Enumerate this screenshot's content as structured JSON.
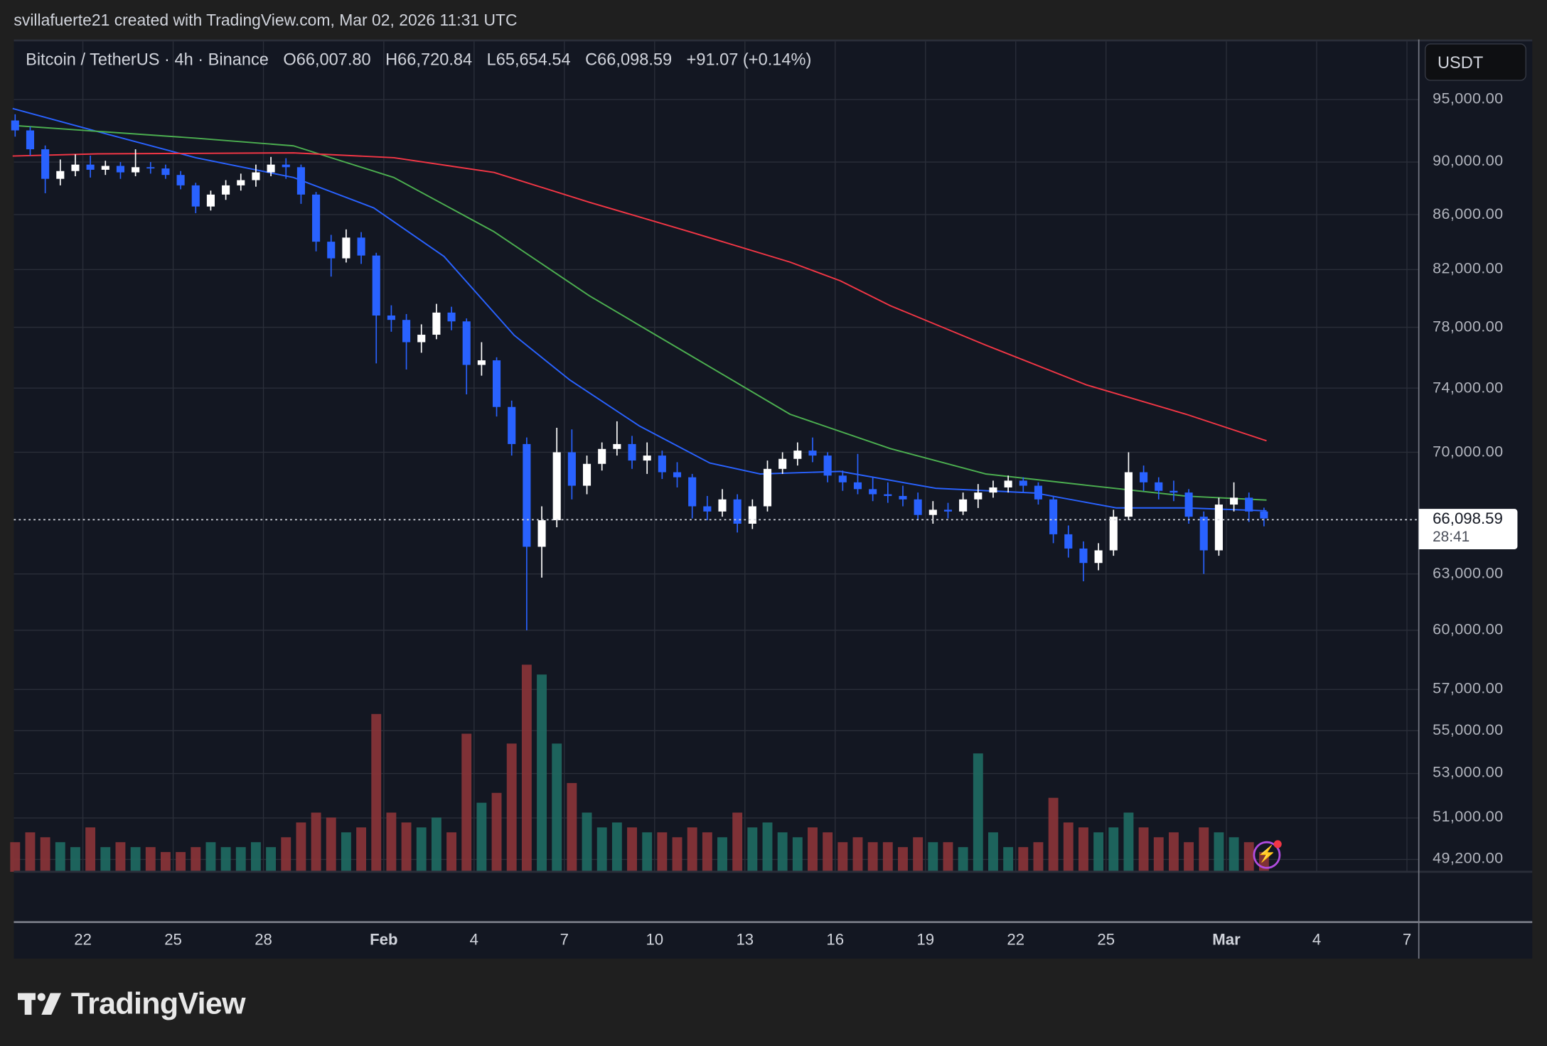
{
  "attribution": "svillafuerte21 created with TradingView.com, Mar 02, 2026 11:31 UTC",
  "legend": {
    "symbol": "Bitcoin / TetherUS · 4h · Binance",
    "open": "O66,007.80",
    "high": "H66,720.84",
    "low": "L65,654.54",
    "close": "C66,098.59",
    "change": "+91.07 (+0.14%)"
  },
  "currency_button": "USDT",
  "last_price": {
    "value": "66,098.59",
    "countdown": "28:41"
  },
  "logo_text": "TradingView",
  "colors": {
    "up_candle": "#ffffff",
    "down_candle": "#2962ff",
    "volume_up": "#1f6b63",
    "volume_down": "#8c3439",
    "ma_blue": "#2962ff",
    "ma_green": "#4caf50",
    "ma_red": "#f23645",
    "grid": "#2a2e39",
    "background": "#131722"
  },
  "chart_data": {
    "type": "candlestick",
    "title": "",
    "y_scale": "log",
    "ylim": [
      48800,
      96500
    ],
    "grid": true,
    "price_ticks": [
      "95,000.00",
      "90,000.00",
      "86,000.00",
      "82,000.00",
      "78,000.00",
      "74,000.00",
      "70,000.00",
      "63,000.00",
      "60,000.00",
      "57,000.00",
      "55,000.00",
      "53,000.00",
      "51,000.00",
      "49,200.00"
    ],
    "date_ticks": [
      {
        "label": "22",
        "date": "Jan 22 00:00"
      },
      {
        "label": "25",
        "date": "Jan 25 00:00"
      },
      {
        "label": "28",
        "date": "Jan 28 00:00"
      },
      {
        "label": "Feb",
        "date": "Feb 1 00:00",
        "bold": true
      },
      {
        "label": "4",
        "date": "Feb 4 00:00"
      },
      {
        "label": "7",
        "date": "Feb 7 00:00"
      },
      {
        "label": "10",
        "date": "Feb 10 00:00"
      },
      {
        "label": "13",
        "date": "Feb 13 00:00"
      },
      {
        "label": "16",
        "date": "Feb 16 00:00"
      },
      {
        "label": "19",
        "date": "Feb 19 00:00"
      },
      {
        "label": "22",
        "date": "Feb 22 00:00"
      },
      {
        "label": "25",
        "date": "Feb 25 00:00"
      },
      {
        "label": "Mar",
        "date": "Mar 1 00:00",
        "bold": true
      },
      {
        "label": "4",
        "date": "Mar 4 00:00"
      },
      {
        "label": "7",
        "date": "Mar 7 00:00"
      }
    ],
    "candle_columns": [
      "time",
      "open",
      "high",
      "low",
      "close",
      "volume"
    ],
    "candles": [
      [
        "Jan 19 12:00",
        93300,
        93800,
        92000,
        92500,
        6
      ],
      [
        "Jan 20 00:00",
        92500,
        92800,
        90500,
        91000,
        8
      ],
      [
        "Jan 20 12:00",
        91000,
        91300,
        87600,
        88700,
        7
      ],
      [
        "Jan 21 00:00",
        88700,
        90200,
        88200,
        89300,
        6
      ],
      [
        "Jan 21 12:00",
        89300,
        90600,
        88900,
        89800,
        5
      ],
      [
        "Jan 22 00:00",
        89800,
        90500,
        88800,
        89400,
        9
      ],
      [
        "Jan 22 12:00",
        89400,
        90100,
        89000,
        89700,
        5
      ],
      [
        "Jan 23 00:00",
        89700,
        90000,
        88700,
        89200,
        6
      ],
      [
        "Jan 23 12:00",
        89200,
        91000,
        88900,
        89600,
        5
      ],
      [
        "Jan 24 00:00",
        89600,
        90000,
        89100,
        89500,
        5
      ],
      [
        "Jan 24 12:00",
        89500,
        89800,
        88700,
        89000,
        4
      ],
      [
        "Jan 25 00:00",
        89000,
        89300,
        87900,
        88200,
        4
      ],
      [
        "Jan 25 12:00",
        88200,
        88400,
        86100,
        86600,
        5
      ],
      [
        "Jan 26 00:00",
        86600,
        87800,
        86300,
        87500,
        6
      ],
      [
        "Jan 26 12:00",
        87500,
        88600,
        87100,
        88200,
        5
      ],
      [
        "Jan 27 00:00",
        88200,
        89100,
        87800,
        88600,
        5
      ],
      [
        "Jan 27 12:00",
        88600,
        89800,
        88100,
        89200,
        6
      ],
      [
        "Jan 28 00:00",
        89200,
        90400,
        88900,
        89800,
        5
      ],
      [
        "Jan 28 12:00",
        89800,
        90300,
        88700,
        89600,
        7
      ],
      [
        "Jan 29 00:00",
        89600,
        89800,
        86800,
        87500,
        10
      ],
      [
        "Jan 29 12:00",
        87500,
        87700,
        83300,
        84000,
        12
      ],
      [
        "Jan 30 00:00",
        84000,
        84500,
        81500,
        82800,
        11
      ],
      [
        "Jan 30 12:00",
        82800,
        84900,
        82500,
        84300,
        8
      ],
      [
        "Jan 31 00:00",
        84300,
        84700,
        82400,
        83000,
        9
      ],
      [
        "Jan 31 12:00",
        83000,
        83200,
        75600,
        78800,
        32
      ],
      [
        "Feb 1 00:00",
        78800,
        79500,
        77700,
        78500,
        12
      ],
      [
        "Feb 1 12:00",
        78500,
        78900,
        75200,
        77000,
        10
      ],
      [
        "Feb 2 00:00",
        77000,
        78200,
        76300,
        77500,
        9
      ],
      [
        "Feb 2 12:00",
        77500,
        79600,
        77200,
        79000,
        11
      ],
      [
        "Feb 3 00:00",
        79000,
        79400,
        77800,
        78400,
        8
      ],
      [
        "Feb 3 12:00",
        78400,
        78600,
        73600,
        75500,
        28
      ],
      [
        "Feb 4 00:00",
        75500,
        77000,
        74800,
        75800,
        14
      ],
      [
        "Feb 4 12:00",
        75800,
        76000,
        72200,
        72800,
        16
      ],
      [
        "Feb 5 00:00",
        72800,
        73200,
        69800,
        70500,
        26
      ],
      [
        "Feb 5 12:00",
        70500,
        70900,
        60000,
        64500,
        42
      ],
      [
        "Feb 6 00:00",
        64500,
        66800,
        62800,
        66000,
        40
      ],
      [
        "Feb 6 12:00",
        66000,
        71500,
        65600,
        70000,
        26
      ],
      [
        "Feb 7 00:00",
        70000,
        71400,
        67200,
        68000,
        18
      ],
      [
        "Feb 7 12:00",
        68000,
        69800,
        67500,
        69300,
        12
      ],
      [
        "Feb 8 00:00",
        69300,
        70600,
        68900,
        70200,
        9
      ],
      [
        "Feb 8 12:00",
        70200,
        71900,
        69800,
        70500,
        10
      ],
      [
        "Feb 9 00:00",
        70500,
        71000,
        69000,
        69500,
        9
      ],
      [
        "Feb 9 12:00",
        69500,
        70600,
        68700,
        69800,
        8
      ],
      [
        "Feb 10 00:00",
        69800,
        70100,
        68400,
        68800,
        8
      ],
      [
        "Feb 10 12:00",
        68800,
        69400,
        67900,
        68500,
        7
      ],
      [
        "Feb 11 00:00",
        68500,
        68700,
        66100,
        66800,
        9
      ],
      [
        "Feb 11 12:00",
        66800,
        67400,
        66000,
        66500,
        8
      ],
      [
        "Feb 12 00:00",
        66500,
        67800,
        66200,
        67200,
        7
      ],
      [
        "Feb 12 12:00",
        67200,
        67500,
        65300,
        65800,
        12
      ],
      [
        "Feb 13 00:00",
        65800,
        67200,
        65500,
        66800,
        9
      ],
      [
        "Feb 13 12:00",
        66800,
        69500,
        66500,
        69000,
        10
      ],
      [
        "Feb 14 00:00",
        69000,
        70000,
        68700,
        69600,
        8
      ],
      [
        "Feb 14 12:00",
        69600,
        70600,
        69200,
        70100,
        7
      ],
      [
        "Feb 15 00:00",
        70100,
        70900,
        69400,
        69800,
        9
      ],
      [
        "Feb 15 12:00",
        69800,
        70000,
        68200,
        68600,
        8
      ],
      [
        "Feb 16 00:00",
        68600,
        68900,
        67700,
        68200,
        6
      ],
      [
        "Feb 16 12:00",
        68200,
        69900,
        67500,
        67800,
        7
      ],
      [
        "Feb 17 00:00",
        67800,
        68500,
        67100,
        67500,
        6
      ],
      [
        "Feb 17 12:00",
        67500,
        68200,
        67000,
        67400,
        6
      ],
      [
        "Feb 18 00:00",
        67400,
        68000,
        66800,
        67200,
        5
      ],
      [
        "Feb 18 12:00",
        67200,
        67600,
        66000,
        66300,
        7
      ],
      [
        "Feb 19 00:00",
        66300,
        67100,
        65800,
        66600,
        6
      ],
      [
        "Feb 19 12:00",
        66600,
        67000,
        66100,
        66500,
        6
      ],
      [
        "Feb 20 00:00",
        66500,
        67600,
        66300,
        67200,
        5
      ],
      [
        "Feb 20 12:00",
        67200,
        68100,
        66700,
        67600,
        24
      ],
      [
        "Feb 21 00:00",
        67600,
        68300,
        67300,
        67900,
        8
      ],
      [
        "Feb 21 12:00",
        67900,
        68600,
        67600,
        68300,
        5
      ],
      [
        "Feb 22 00:00",
        68300,
        68500,
        67600,
        68000,
        5
      ],
      [
        "Feb 22 12:00",
        68000,
        68200,
        66900,
        67200,
        6
      ],
      [
        "Feb 23 00:00",
        67200,
        67400,
        64700,
        65200,
        15
      ],
      [
        "Feb 23 12:00",
        65200,
        65700,
        63900,
        64400,
        10
      ],
      [
        "Feb 24 00:00",
        64400,
        64800,
        62600,
        63600,
        9
      ],
      [
        "Feb 24 12:00",
        63600,
        64700,
        63200,
        64300,
        8
      ],
      [
        "Feb 25 00:00",
        64300,
        66600,
        64000,
        66200,
        9
      ],
      [
        "Feb 25 12:00",
        66200,
        70000,
        66000,
        68800,
        12
      ],
      [
        "Feb 26 00:00",
        68800,
        69200,
        67700,
        68200,
        9
      ],
      [
        "Feb 26 12:00",
        68200,
        68500,
        67200,
        67700,
        7
      ],
      [
        "Feb 27 00:00",
        67700,
        68300,
        67100,
        67600,
        8
      ],
      [
        "Feb 27 12:00",
        67600,
        67800,
        65800,
        66200,
        6
      ],
      [
        "Feb 28 00:00",
        66200,
        66500,
        63000,
        64300,
        9
      ],
      [
        "Feb 28 12:00",
        64300,
        67300,
        64000,
        66900,
        8
      ],
      [
        "Mar 1 00:00",
        66900,
        68200,
        66500,
        67300,
        7
      ],
      [
        "Mar 1 12:00",
        67300,
        67600,
        65900,
        66500,
        6
      ],
      [
        "Mar 2 00:00",
        66500,
        66720,
        65650,
        66099,
        4
      ]
    ],
    "moving_averages": [
      {
        "color_key": "ma_blue",
        "points": [
          [
            "Jan 19 16:00",
            94270
          ],
          [
            "Jan 22 12:00",
            92400
          ],
          [
            "Jan 25 18:00",
            90340
          ],
          [
            "Jan 29 00:00",
            88800
          ],
          [
            "Jan 31 16:00",
            86500
          ],
          [
            "Feb 3 00:00",
            82940
          ],
          [
            "Feb 5 08:00",
            77460
          ],
          [
            "Feb 7 04:00",
            74540
          ],
          [
            "Feb 9 12:00",
            71600
          ],
          [
            "Feb 11 20:00",
            69350
          ],
          [
            "Feb 13 12:00",
            68700
          ],
          [
            "Feb 16 04:00",
            68850
          ],
          [
            "Feb 19 08:00",
            67850
          ],
          [
            "Feb 22 16:00",
            67570
          ],
          [
            "Feb 25 08:00",
            66710
          ],
          [
            "Feb 27 16:00",
            66710
          ],
          [
            "Mar 2 08:00",
            66540
          ]
        ]
      },
      {
        "color_key": "ma_green",
        "points": [
          [
            "Jan 19 16:00",
            92900
          ],
          [
            "Jan 25 18:00",
            91880
          ],
          [
            "Jan 29 00:00",
            91270
          ],
          [
            "Feb 1 08:00",
            88800
          ],
          [
            "Feb 4 16:00",
            84730
          ],
          [
            "Feb 7 20:00",
            80150
          ],
          [
            "Feb 11 04:00",
            76150
          ],
          [
            "Feb 14 12:00",
            72340
          ],
          [
            "Feb 17 20:00",
            70220
          ],
          [
            "Feb 21 00:00",
            68700
          ],
          [
            "Feb 24 08:00",
            68030
          ],
          [
            "Feb 27 16:00",
            67390
          ],
          [
            "Mar 2 08:00",
            67160
          ]
        ]
      },
      {
        "color_key": "ma_red",
        "points": [
          [
            "Jan 19 16:00",
            90470
          ],
          [
            "Jan 22 12:00",
            90640
          ],
          [
            "Jan 29 00:00",
            90720
          ],
          [
            "Feb 1 08:00",
            90340
          ],
          [
            "Feb 4 16:00",
            89190
          ],
          [
            "Feb 7 20:00",
            86920
          ],
          [
            "Feb 11 04:00",
            84730
          ],
          [
            "Feb 14 12:00",
            82530
          ],
          [
            "Feb 16 04:00",
            81210
          ],
          [
            "Feb 17 20:00",
            79470
          ],
          [
            "Feb 21 00:00",
            76810
          ],
          [
            "Feb 24 08:00",
            74220
          ],
          [
            "Feb 27 16:00",
            72340
          ],
          [
            "Mar 2 08:00",
            70700
          ]
        ]
      }
    ]
  }
}
